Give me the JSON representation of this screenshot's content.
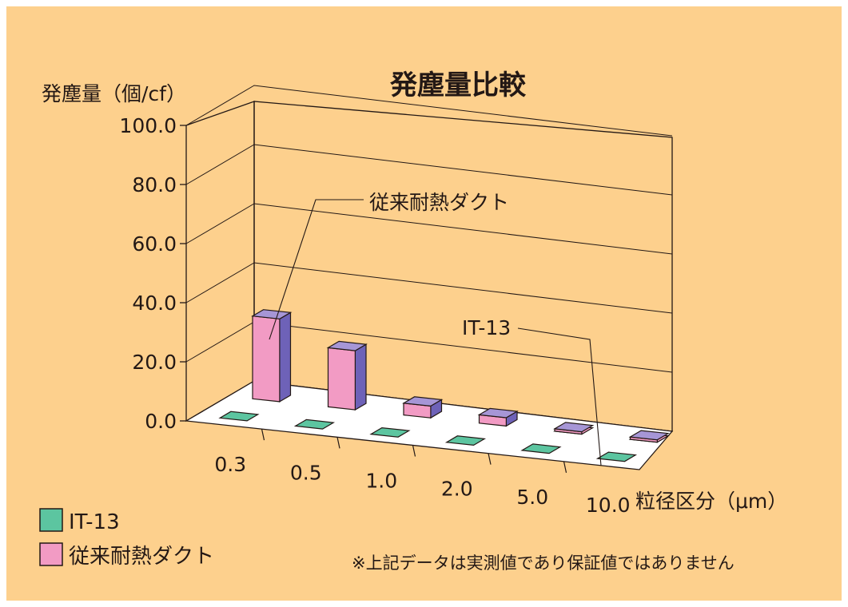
{
  "chart_data": {
    "type": "bar",
    "title": "発塵量比較",
    "ylabel": "発塵量（個/cf）",
    "xlabel": "粒径区分（μm）",
    "ylim": [
      0,
      100
    ],
    "yticks": [
      "0.0",
      "20.0",
      "40.0",
      "60.0",
      "80.0",
      "100.0"
    ],
    "categories": [
      "0.3",
      "0.5",
      "1.0",
      "2.0",
      "5.0",
      "10.0"
    ],
    "grid": true,
    "legend_position": "bottom-left",
    "series": [
      {
        "name": "IT-13",
        "values": [
          0,
          0,
          0,
          0,
          0,
          0
        ],
        "color": "#5cc5a0"
      },
      {
        "name": "従来耐熱ダクト",
        "values": [
          28.0,
          20.0,
          4.0,
          2.8,
          0.9,
          0.6
        ],
        "color": "#f29bc4",
        "side_color": "#6e62b8",
        "top_color": "#a696d6"
      }
    ],
    "annotations": [
      {
        "text": "従来耐熱ダクト",
        "series": 1,
        "points_to": "0.3"
      },
      {
        "text": "IT-13",
        "series": 0,
        "points_to": "10.0"
      }
    ],
    "note": "※上記データは実測値であり保証値ではありません"
  }
}
